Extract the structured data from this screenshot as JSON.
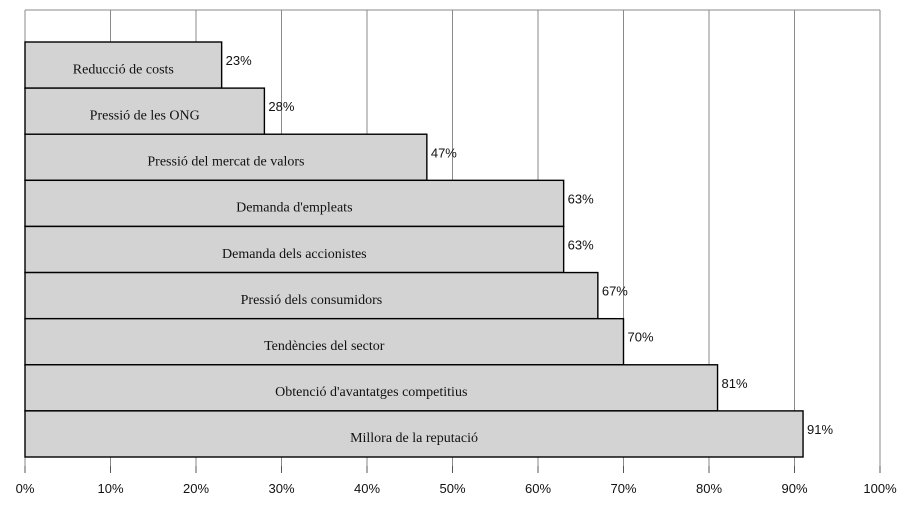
{
  "chart_data": {
    "type": "bar",
    "orientation": "horizontal",
    "categories": [
      "Reducció de costs",
      "Pressió de les ONG",
      "Pressió del mercat de valors",
      "Demanda d'empleats",
      "Demanda dels accionistes",
      "Pressió dels consumidors",
      "Tendències del sector",
      "Obtenció d'avantatges competitius",
      "Millora de la reputació"
    ],
    "values": [
      23,
      28,
      47,
      63,
      63,
      67,
      70,
      81,
      91
    ],
    "value_labels": [
      "23%",
      "28%",
      "47%",
      "63%",
      "63%",
      "67%",
      "70%",
      "81%",
      "91%"
    ],
    "xlim": [
      0,
      100
    ],
    "xticks": [
      0,
      10,
      20,
      30,
      40,
      50,
      60,
      70,
      80,
      90,
      100
    ],
    "xtick_labels": [
      "0%",
      "10%",
      "20%",
      "30%",
      "40%",
      "50%",
      "60%",
      "70%",
      "80%",
      "90%",
      "100%"
    ],
    "grid": true,
    "bar_color": "#d3d3d3",
    "title": "",
    "xlabel": "",
    "ylabel": ""
  }
}
